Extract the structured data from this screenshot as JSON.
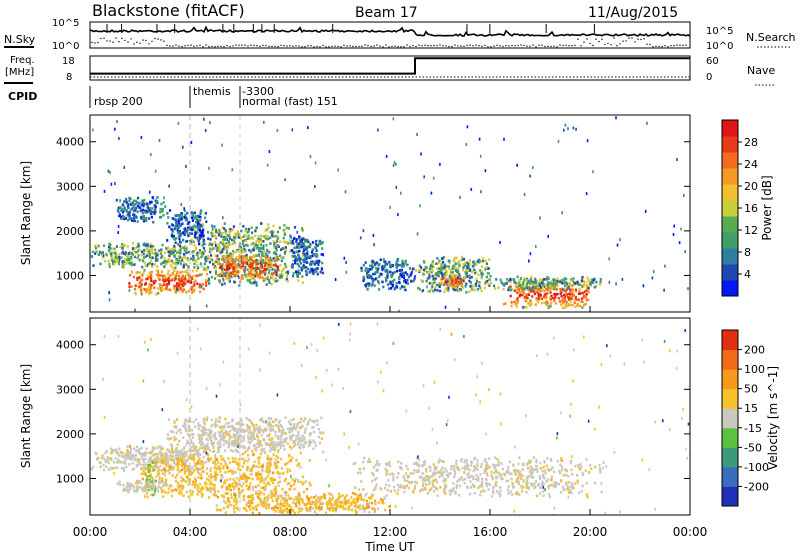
{
  "header": {
    "station": "Blackstone (fitACF)",
    "beam": "Beam 17",
    "date": "11/Aug/2015"
  },
  "top_panels": {
    "nsky_label": "N.Sky",
    "nsky_tick_top": "10^5",
    "nsky_tick_bottom": "10^0",
    "nsearch_label": "N.Search",
    "nsearch_tick_top": "10^5",
    "nsearch_tick_bottom": "10^0",
    "freq_label_1": "Freq.",
    "freq_label_2": "[MHz]",
    "freq_tick_top": "18",
    "freq_tick_bottom": "8",
    "nave_label": "Nave",
    "nave_tick_top": "60",
    "nave_tick_bottom": "0",
    "cpid_label": "CPID",
    "cpid_segments": [
      {
        "label": "rbsp 200",
        "start_hour": 0
      },
      {
        "label": "themis",
        "start_hour": 4
      },
      {
        "label": "-3300",
        "start_hour": 6
      },
      {
        "label": "normal (fast) 151",
        "start_hour": 6
      }
    ],
    "freq_step": [
      {
        "from_hour": 0,
        "to_hour": 13,
        "value": 10.5
      },
      {
        "from_hour": 13,
        "to_hour": 24,
        "value": 17.6
      }
    ]
  },
  "axes": {
    "xlabel": "Time UT",
    "x_ticks": [
      "00:00",
      "04:00",
      "08:00",
      "12:00",
      "16:00",
      "20:00",
      "00:00"
    ],
    "ylabel": "Slant Range [km]",
    "y_ticks": [
      "1000",
      "2000",
      "3000",
      "4000"
    ]
  },
  "power_colorbar": {
    "label": "Power [dB]",
    "ticks": [
      "4",
      "8",
      "12",
      "16",
      "20",
      "24",
      "28"
    ],
    "colors": [
      "#0018f5",
      "#1f48b0",
      "#2d7ea0",
      "#3f9e6a",
      "#5aaa52",
      "#c8cf38",
      "#f2c02c",
      "#f59a22",
      "#f26c1c",
      "#e83a18",
      "#e01515"
    ]
  },
  "velocity_colorbar": {
    "label": "Velocity [m s^-1]",
    "ticks": [
      "200",
      "100",
      "50",
      "15",
      "-15",
      "-50",
      "-100",
      "-200"
    ],
    "colors": [
      "#2030b8",
      "#3a6cc0",
      "#3a9a7a",
      "#5ac440",
      "#c8c8c0",
      "#f5c02a",
      "#f59a1c",
      "#f26a16",
      "#e03010"
    ]
  },
  "chart_data": {
    "type": "heatmap",
    "title": "Blackstone (fitACF)",
    "xlabel": "Time UT",
    "ylabel": "Slant Range [km]",
    "xlim_hours": [
      0,
      24
    ],
    "ylim_km": [
      180,
      4600
    ],
    "power_regions": [
      {
        "t0": 0.0,
        "t1": 4.6,
        "r0": 1200,
        "r1": 1750,
        "level": "medium"
      },
      {
        "t0": 1.5,
        "t1": 4.8,
        "r0": 600,
        "r1": 1150,
        "level": "high"
      },
      {
        "t0": 4.0,
        "t1": 8.5,
        "r0": 800,
        "r1": 2200,
        "level": "medium"
      },
      {
        "t0": 5.0,
        "t1": 7.5,
        "r0": 900,
        "r1": 1500,
        "level": "high"
      },
      {
        "t0": 8.0,
        "t1": 9.3,
        "r0": 1000,
        "r1": 1900,
        "level": "low"
      },
      {
        "t0": 10.8,
        "t1": 13.0,
        "r0": 700,
        "r1": 1400,
        "level": "low"
      },
      {
        "t0": 13.0,
        "t1": 16.0,
        "r0": 650,
        "r1": 1450,
        "level": "medium"
      },
      {
        "t0": 14.0,
        "t1": 15.0,
        "r0": 750,
        "r1": 1050,
        "level": "high"
      },
      {
        "t0": 16.5,
        "t1": 20.0,
        "r0": 300,
        "r1": 900,
        "level": "high"
      },
      {
        "t0": 16.0,
        "t1": 20.5,
        "r0": 700,
        "r1": 1000,
        "level": "medium"
      },
      {
        "t0": 1.0,
        "t1": 3.0,
        "r0": 2200,
        "r1": 2800,
        "level": "low"
      },
      {
        "t0": 3.0,
        "t1": 4.8,
        "r0": 1700,
        "r1": 2500,
        "level": "low"
      }
    ],
    "velocity_regions": [
      {
        "t0": 0.0,
        "t1": 5.0,
        "r0": 1200,
        "r1": 1750,
        "kind": "gray"
      },
      {
        "t0": 2.0,
        "t1": 8.8,
        "r0": 600,
        "r1": 1600,
        "kind": "orange"
      },
      {
        "t0": 3.0,
        "t1": 9.3,
        "r0": 1600,
        "r1": 2400,
        "kind": "gray"
      },
      {
        "t0": 2.2,
        "t1": 2.6,
        "r0": 600,
        "r1": 1400,
        "kind": "green"
      },
      {
        "t0": 10.5,
        "t1": 20.5,
        "r0": 600,
        "r1": 1500,
        "kind": "gray"
      },
      {
        "t0": 5.0,
        "t1": 12.0,
        "r0": 250,
        "r1": 700,
        "kind": "orange"
      },
      {
        "t0": 1.0,
        "t1": 3.0,
        "r0": 700,
        "r1": 1000,
        "kind": "gray"
      }
    ]
  }
}
